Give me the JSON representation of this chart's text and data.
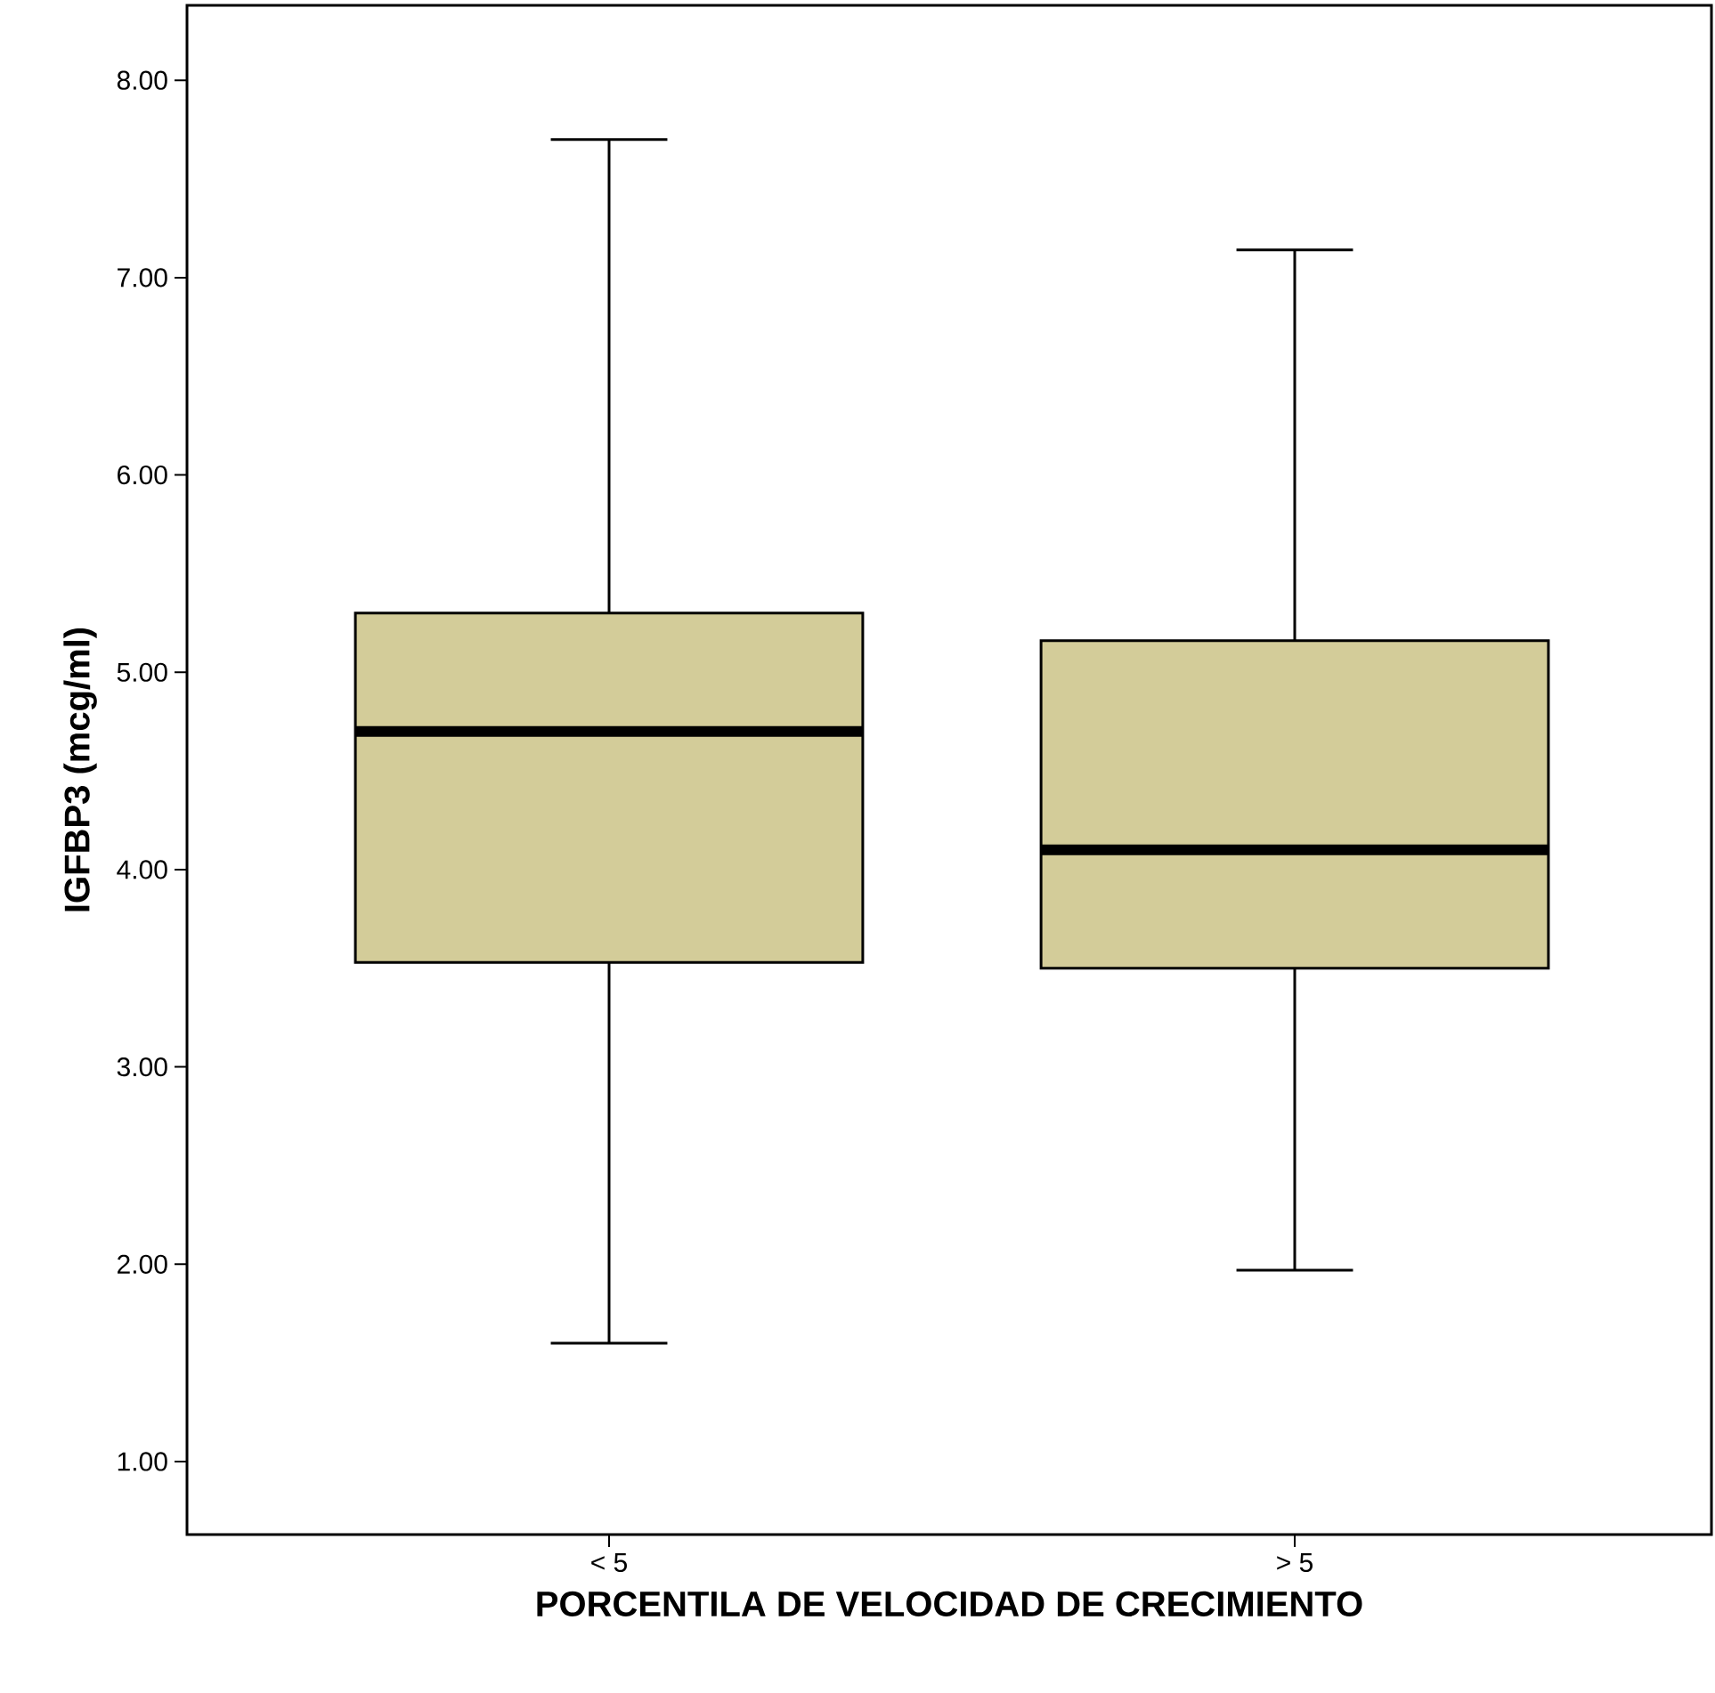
{
  "chart_data": {
    "type": "box",
    "xlabel": "PORCENTILA DE VELOCIDAD DE CRECIMIENTO",
    "ylabel": "IGFBP3 (mcg/ml)",
    "categories": [
      "< 5",
      "> 5"
    ],
    "series": [
      {
        "color": "#d3cc99",
        "boxes": [
          {
            "low": 1.6,
            "q1": 3.53,
            "median": 4.7,
            "q3": 5.3,
            "high": 7.7
          },
          {
            "low": 1.97,
            "q1": 3.5,
            "median": 4.1,
            "q3": 5.16,
            "high": 7.14
          }
        ]
      }
    ],
    "ylim": [
      0.63,
      8.38
    ],
    "yticks": [
      {
        "value": 1,
        "label": "1.00"
      },
      {
        "value": 2,
        "label": "2.00"
      },
      {
        "value": 3,
        "label": "3.00"
      },
      {
        "value": 4,
        "label": "4.00"
      },
      {
        "value": 5,
        "label": "5.00"
      },
      {
        "value": 6,
        "label": "6.00"
      },
      {
        "value": 7,
        "label": "7.00"
      },
      {
        "value": 8,
        "label": "8.00"
      }
    ],
    "grid": false
  }
}
